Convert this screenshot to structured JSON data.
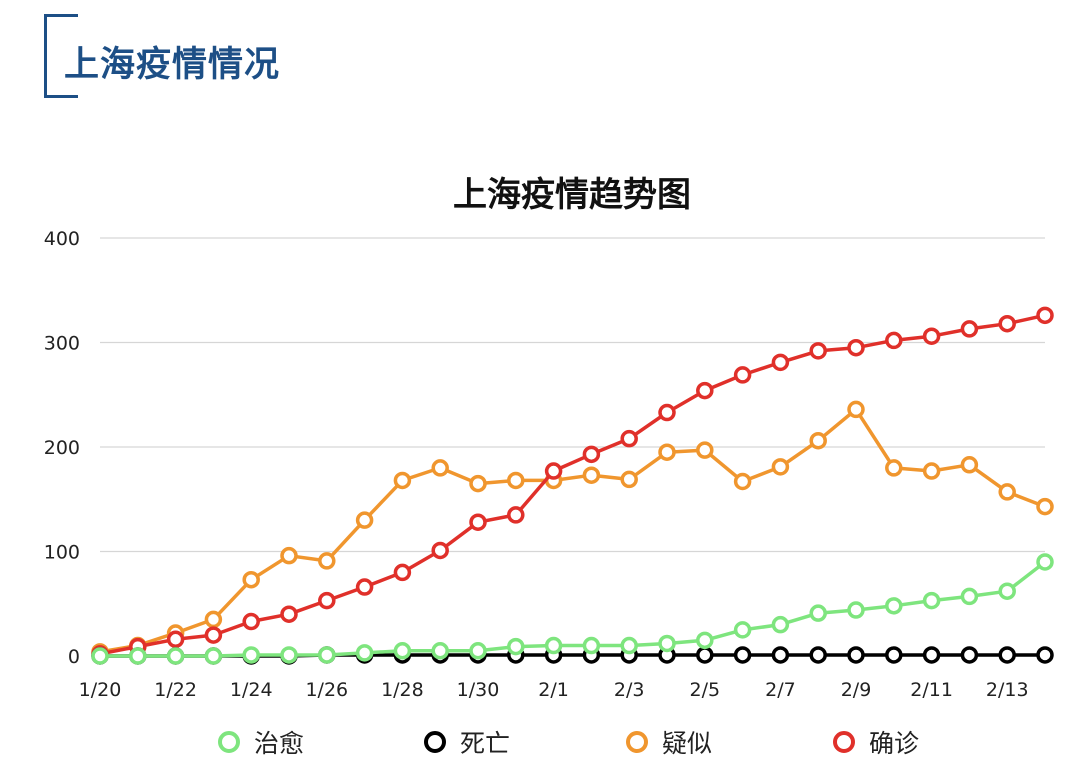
{
  "header": {
    "title": "上海疫情情况"
  },
  "chart_data": {
    "type": "line",
    "title": "上海疫情趋势图",
    "xlabel": "",
    "ylabel": "",
    "ylim": [
      0,
      400
    ],
    "yticks": [
      0,
      100,
      200,
      300,
      400
    ],
    "grid": true,
    "legend": "bottom",
    "x": [
      "1/20",
      "1/21",
      "1/22",
      "1/23",
      "1/24",
      "1/25",
      "1/26",
      "1/27",
      "1/28",
      "1/29",
      "1/30",
      "1/31",
      "2/1",
      "2/2",
      "2/3",
      "2/4",
      "2/5",
      "2/6",
      "2/7",
      "2/8",
      "2/9",
      "2/10",
      "2/11",
      "2/12",
      "2/13",
      "2/14"
    ],
    "xtick_labels": [
      "1/20",
      "1/22",
      "1/24",
      "1/26",
      "1/28",
      "1/30",
      "2/1",
      "2/3",
      "2/5",
      "2/7",
      "2/9",
      "2/11",
      "2/13"
    ],
    "series": [
      {
        "name": "疑似",
        "color": "#f0962e",
        "values": [
          4,
          10,
          22,
          35,
          73,
          96,
          91,
          130,
          168,
          180,
          165,
          168,
          168,
          173,
          169,
          195,
          197,
          167,
          181,
          206,
          236,
          180,
          177,
          183,
          157,
          143
        ]
      },
      {
        "name": "确诊",
        "color": "#e0302a",
        "values": [
          2,
          9,
          16,
          20,
          33,
          40,
          53,
          66,
          80,
          101,
          128,
          135,
          177,
          193,
          208,
          233,
          254,
          269,
          281,
          292,
          295,
          302,
          306,
          313,
          318,
          326
        ]
      },
      {
        "name": "治愈",
        "color": "#7ee57e",
        "values": [
          0,
          0,
          0,
          0,
          1,
          1,
          1,
          3,
          5,
          5,
          5,
          9,
          10,
          10,
          10,
          12,
          15,
          25,
          30,
          41,
          44,
          48,
          53,
          57,
          62,
          90
        ]
      },
      {
        "name": "死亡",
        "color": "#000000",
        "values": [
          0,
          0,
          0,
          0,
          0,
          0,
          1,
          1,
          1,
          1,
          1,
          1,
          1,
          1,
          1,
          1,
          1,
          1,
          1,
          1,
          1,
          1,
          1,
          1,
          1,
          1
        ]
      }
    ],
    "legend_order": [
      "治愈",
      "死亡",
      "疑似",
      "确诊"
    ]
  }
}
